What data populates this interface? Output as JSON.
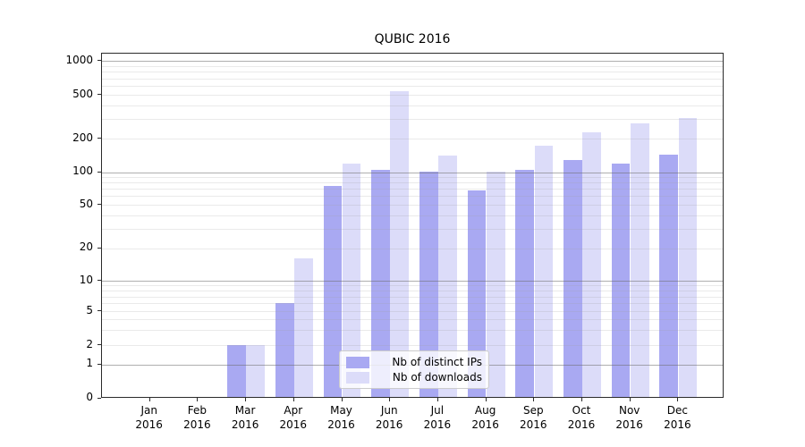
{
  "chart_data": {
    "type": "bar",
    "title": "QUBIC 2016",
    "categories": [
      "Jan",
      "Feb",
      "Mar",
      "Apr",
      "May",
      "Jun",
      "Jul",
      "Aug",
      "Sep",
      "Oct",
      "Nov",
      "Dec"
    ],
    "year": "2016",
    "series": [
      {
        "name": "Nb of distinct IPs",
        "color": "#a9a9f2",
        "values": [
          0,
          0,
          2,
          6,
          74,
          104,
          100,
          67,
          103,
          128,
          119,
          143
        ]
      },
      {
        "name": "Nb of downloads",
        "color": "#dcdcf9",
        "values": [
          0,
          0,
          2,
          16,
          119,
          530,
          140,
          100,
          172,
          225,
          272,
          305
        ]
      }
    ],
    "yscale": "symlog",
    "yticks": [
      0,
      1,
      2,
      5,
      10,
      20,
      50,
      100,
      200,
      500,
      1000
    ],
    "minor_gridline_values": [
      2,
      3,
      4,
      5,
      6,
      7,
      8,
      9,
      20,
      30,
      40,
      50,
      60,
      70,
      80,
      90,
      200,
      300,
      400,
      500,
      600,
      700,
      800,
      900
    ],
    "major_gridline_values": [
      1,
      10,
      100,
      1000
    ],
    "ylim": [
      0,
      1000
    ],
    "grid": true,
    "legend_position": "lower center (inside axes)",
    "xlabel": "",
    "ylabel": ""
  }
}
